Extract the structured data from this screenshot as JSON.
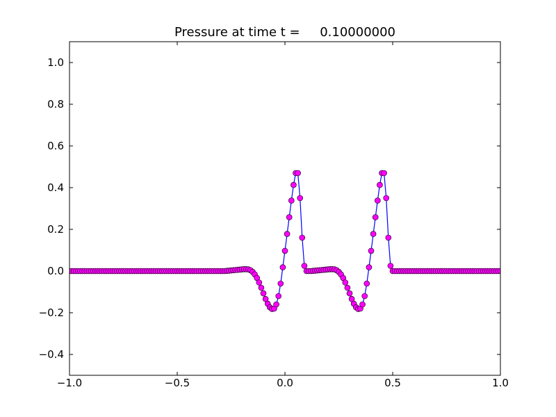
{
  "chart_data": {
    "type": "line",
    "title": "Pressure at time t =     0.10000000",
    "xlabel": "",
    "ylabel": "",
    "xlim": [
      -1.0,
      1.0
    ],
    "ylim": [
      -0.5,
      1.1
    ],
    "grid": false,
    "x_ticks": [
      -1.0,
      -0.5,
      0.0,
      0.5,
      1.0
    ],
    "x_tick_labels": [
      "−1.0",
      "−0.5",
      "0.0",
      "0.5",
      "1.0"
    ],
    "y_ticks": [
      -0.4,
      -0.2,
      0.0,
      0.2,
      0.4,
      0.6,
      0.8,
      1.0
    ],
    "y_tick_labels": [
      "−0.4",
      "−0.2",
      "0.0",
      "0.2",
      "0.4",
      "0.6",
      "0.8",
      "1.0"
    ],
    "series": [
      {
        "line_color": "#0000ff",
        "marker_color": "#ff00ff",
        "marker_edge": "#000000",
        "marker": "circle",
        "x": [
          -1.0,
          -0.99,
          -0.98,
          -0.97,
          -0.96,
          -0.95,
          -0.94,
          -0.93,
          -0.92,
          -0.91,
          -0.9,
          -0.89,
          -0.88,
          -0.87,
          -0.86,
          -0.85,
          -0.84,
          -0.83,
          -0.82,
          -0.81,
          -0.8,
          -0.79,
          -0.78,
          -0.77,
          -0.76,
          -0.75,
          -0.74,
          -0.73,
          -0.72,
          -0.71,
          -0.7,
          -0.69,
          -0.68,
          -0.67,
          -0.66,
          -0.65,
          -0.64,
          -0.63,
          -0.62,
          -0.61,
          -0.6,
          -0.59,
          -0.58,
          -0.57,
          -0.56,
          -0.55,
          -0.54,
          -0.53,
          -0.52,
          -0.51,
          -0.5,
          -0.49,
          -0.48,
          -0.47,
          -0.46,
          -0.45,
          -0.44,
          -0.43,
          -0.42,
          -0.41,
          -0.4,
          -0.39,
          -0.38,
          -0.37,
          -0.36,
          -0.35,
          -0.34,
          -0.33,
          -0.32,
          -0.31,
          -0.3,
          -0.29,
          -0.28,
          -0.27,
          -0.26,
          -0.25,
          -0.24,
          -0.23,
          -0.22,
          -0.21,
          -0.2,
          -0.19,
          -0.18,
          -0.17,
          -0.16,
          -0.15,
          -0.14,
          -0.13,
          -0.12,
          -0.11,
          -0.1,
          -0.09,
          -0.08,
          -0.07,
          -0.06,
          -0.05,
          -0.04,
          -0.03,
          -0.02,
          -0.01,
          0.0,
          0.01,
          0.02,
          0.03,
          0.04,
          0.05,
          0.06,
          0.07,
          0.08,
          0.09,
          0.1,
          0.11,
          0.12,
          0.13,
          0.14,
          0.15,
          0.16,
          0.17,
          0.18,
          0.19,
          0.2,
          0.21,
          0.22,
          0.23,
          0.24,
          0.25,
          0.26,
          0.27,
          0.28,
          0.29,
          0.3,
          0.31,
          0.32,
          0.33,
          0.34,
          0.35,
          0.36,
          0.37,
          0.38,
          0.39,
          0.4,
          0.41,
          0.42,
          0.43,
          0.44,
          0.45,
          0.46,
          0.47,
          0.48,
          0.49,
          0.5,
          0.51,
          0.52,
          0.53,
          0.54,
          0.55,
          0.56,
          0.57,
          0.58,
          0.59,
          0.6,
          0.61,
          0.62,
          0.63,
          0.64,
          0.65,
          0.66,
          0.67,
          0.68,
          0.69,
          0.7,
          0.71,
          0.72,
          0.73,
          0.74,
          0.75,
          0.76,
          0.77,
          0.78,
          0.79,
          0.8,
          0.81,
          0.82,
          0.83,
          0.84,
          0.85,
          0.86,
          0.87,
          0.88,
          0.89,
          0.9,
          0.91,
          0.92,
          0.93,
          0.94,
          0.95,
          0.96,
          0.97,
          0.98,
          0.99,
          1.0
        ],
        "y": [
          0,
          0,
          0,
          0,
          0,
          0,
          0,
          0,
          0,
          0,
          0,
          0,
          0,
          0,
          0,
          0,
          0,
          0,
          0,
          0,
          0,
          0,
          0,
          0,
          0,
          0,
          0,
          0,
          0,
          0,
          0,
          0,
          0,
          0,
          0,
          0,
          0,
          0,
          0,
          0,
          0,
          0,
          0,
          0,
          0,
          0,
          0,
          0,
          0,
          0,
          0,
          0,
          0,
          0,
          0,
          0,
          0,
          0,
          0,
          0,
          0,
          0,
          0,
          0,
          0,
          0,
          0,
          0,
          0,
          0,
          0,
          0,
          0,
          0.001,
          0.002,
          0.003,
          0.004,
          0.005,
          0.006,
          0.007,
          0.008,
          0.009,
          0.009,
          0.008,
          0.004,
          -0.004,
          -0.016,
          -0.033,
          -0.055,
          -0.08,
          -0.107,
          -0.134,
          -0.157,
          -0.174,
          -0.182,
          -0.18,
          -0.16,
          -0.12,
          -0.06,
          0.018,
          0.097,
          0.178,
          0.258,
          0.338,
          0.413,
          0.47,
          0.47,
          0.35,
          0.16,
          0.025,
          0,
          0,
          0,
          0.001,
          0.002,
          0.003,
          0.004,
          0.005,
          0.006,
          0.007,
          0.008,
          0.009,
          0.009,
          0.008,
          0.004,
          -0.004,
          -0.016,
          -0.033,
          -0.055,
          -0.08,
          -0.107,
          -0.134,
          -0.157,
          -0.174,
          -0.182,
          -0.18,
          -0.16,
          -0.12,
          -0.06,
          0.018,
          0.097,
          0.178,
          0.258,
          0.338,
          0.413,
          0.47,
          0.47,
          0.35,
          0.16,
          0.025,
          0,
          0,
          0,
          0,
          0,
          0,
          0,
          0,
          0,
          0,
          0,
          0,
          0,
          0,
          0,
          0,
          0,
          0,
          0,
          0,
          0,
          0,
          0,
          0,
          0,
          0,
          0,
          0,
          0,
          0,
          0,
          0,
          0,
          0,
          0,
          0,
          0,
          0,
          0,
          0,
          0,
          0,
          0,
          0,
          0,
          0,
          0,
          0,
          0,
          0,
          0
        ]
      }
    ]
  }
}
